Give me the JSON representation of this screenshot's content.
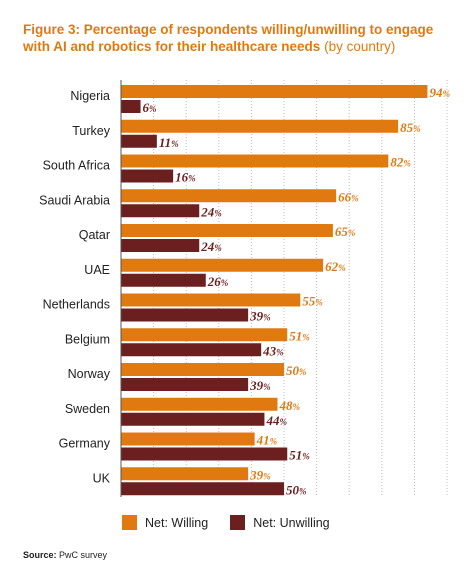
{
  "title": {
    "main": "Figure 3: Percentage of respondents willing/unwilling to engage with AI and robotics for their healthcare needs",
    "sub": "(by country)"
  },
  "colors": {
    "willing": "#e07a10",
    "unwilling": "#6b1f1f",
    "gridline": "#bbbbbb",
    "axis": "#555555"
  },
  "legend": [
    {
      "key": "willing",
      "label": "Net: Willing"
    },
    {
      "key": "unwilling",
      "label": "Net: Unwilling"
    }
  ],
  "source": {
    "label": "Source:",
    "text": "PwC survey"
  },
  "chart_data": {
    "type": "bar",
    "orientation": "horizontal",
    "categories": [
      "Nigeria",
      "Turkey",
      "South Africa",
      "Saudi Arabia",
      "Qatar",
      "UAE",
      "Netherlands",
      "Belgium",
      "Norway",
      "Sweden",
      "Germany",
      "UK"
    ],
    "series": [
      {
        "name": "Net: Willing",
        "key": "willing",
        "values": [
          94,
          85,
          82,
          66,
          65,
          62,
          55,
          51,
          50,
          48,
          41,
          39
        ]
      },
      {
        "name": "Net: Unwilling",
        "key": "unwilling",
        "values": [
          6,
          11,
          16,
          24,
          24,
          26,
          39,
          43,
          39,
          44,
          51,
          50
        ]
      }
    ],
    "value_suffix": "%",
    "xlim": [
      0,
      100
    ],
    "grid": true,
    "legend_position": "bottom"
  }
}
